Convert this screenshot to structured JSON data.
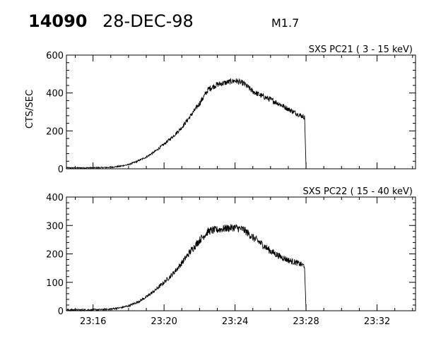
{
  "header": {
    "event_id": "14090",
    "date": "28-DEC-98",
    "flare_class": "M1.7"
  },
  "chart_data": [
    {
      "type": "line",
      "title": "SXS PC21  (  3 - 15 keV)",
      "xlabel": "",
      "ylabel": "CTS/SEC",
      "xlim": [
        "23:14:30",
        "23:34:10"
      ],
      "ylim": [
        0,
        600
      ],
      "yticks": [
        0,
        200,
        400,
        600
      ],
      "xticks": [
        "23:16",
        "23:20",
        "23:24",
        "23:28",
        "23:32"
      ],
      "xticks_labeled": false,
      "grid": false,
      "noise_amplitude": 12,
      "series": [
        {
          "points": [
            [
              "23:14:30",
              5
            ],
            [
              "23:15:30",
              5
            ],
            [
              "23:16:30",
              6
            ],
            [
              "23:17:00",
              8
            ],
            [
              "23:17:30",
              13
            ],
            [
              "23:18:00",
              22
            ],
            [
              "23:18:30",
              40
            ],
            [
              "23:19:00",
              62
            ],
            [
              "23:19:30",
              92
            ],
            [
              "23:20:00",
              130
            ],
            [
              "23:20:30",
              170
            ],
            [
              "23:21:00",
              218
            ],
            [
              "23:21:30",
              280
            ],
            [
              "23:22:00",
              345
            ],
            [
              "23:22:30",
              420
            ],
            [
              "23:23:00",
              445
            ],
            [
              "23:23:30",
              455
            ],
            [
              "23:24:00",
              465
            ],
            [
              "23:24:30",
              450
            ],
            [
              "23:25:00",
              408
            ],
            [
              "23:25:30",
              385
            ],
            [
              "23:26:00",
              365
            ],
            [
              "23:26:30",
              342
            ],
            [
              "23:27:00",
              315
            ],
            [
              "23:27:30",
              290
            ],
            [
              "23:27:55",
              272
            ],
            [
              "23:28:00",
              0
            ]
          ]
        }
      ]
    },
    {
      "type": "line",
      "title": "SXS PC22  ( 15 - 40 keV)",
      "xlabel": "",
      "ylabel": "",
      "xlim": [
        "23:14:30",
        "23:34:10"
      ],
      "ylim": [
        0,
        400
      ],
      "yticks": [
        0,
        100,
        200,
        300,
        400
      ],
      "xticks": [
        "23:16",
        "23:20",
        "23:24",
        "23:28",
        "23:32"
      ],
      "xticks_labeled": true,
      "grid": false,
      "noise_amplitude": 11,
      "series": [
        {
          "points": [
            [
              "23:14:30",
              3
            ],
            [
              "23:15:30",
              3
            ],
            [
              "23:16:30",
              4
            ],
            [
              "23:17:00",
              6
            ],
            [
              "23:17:30",
              10
            ],
            [
              "23:18:00",
              17
            ],
            [
              "23:18:30",
              30
            ],
            [
              "23:19:00",
              48
            ],
            [
              "23:19:30",
              72
            ],
            [
              "23:20:00",
              100
            ],
            [
              "23:20:30",
              130
            ],
            [
              "23:21:00",
              168
            ],
            [
              "23:21:30",
              210
            ],
            [
              "23:22:00",
              248
            ],
            [
              "23:22:30",
              280
            ],
            [
              "23:23:00",
              285
            ],
            [
              "23:23:30",
              290
            ],
            [
              "23:24:00",
              293
            ],
            [
              "23:24:30",
              285
            ],
            [
              "23:25:00",
              258
            ],
            [
              "23:25:30",
              235
            ],
            [
              "23:26:00",
              210
            ],
            [
              "23:26:30",
              192
            ],
            [
              "23:27:00",
              178
            ],
            [
              "23:27:30",
              168
            ],
            [
              "23:27:55",
              158
            ],
            [
              "23:28:00",
              0
            ]
          ]
        }
      ]
    }
  ]
}
